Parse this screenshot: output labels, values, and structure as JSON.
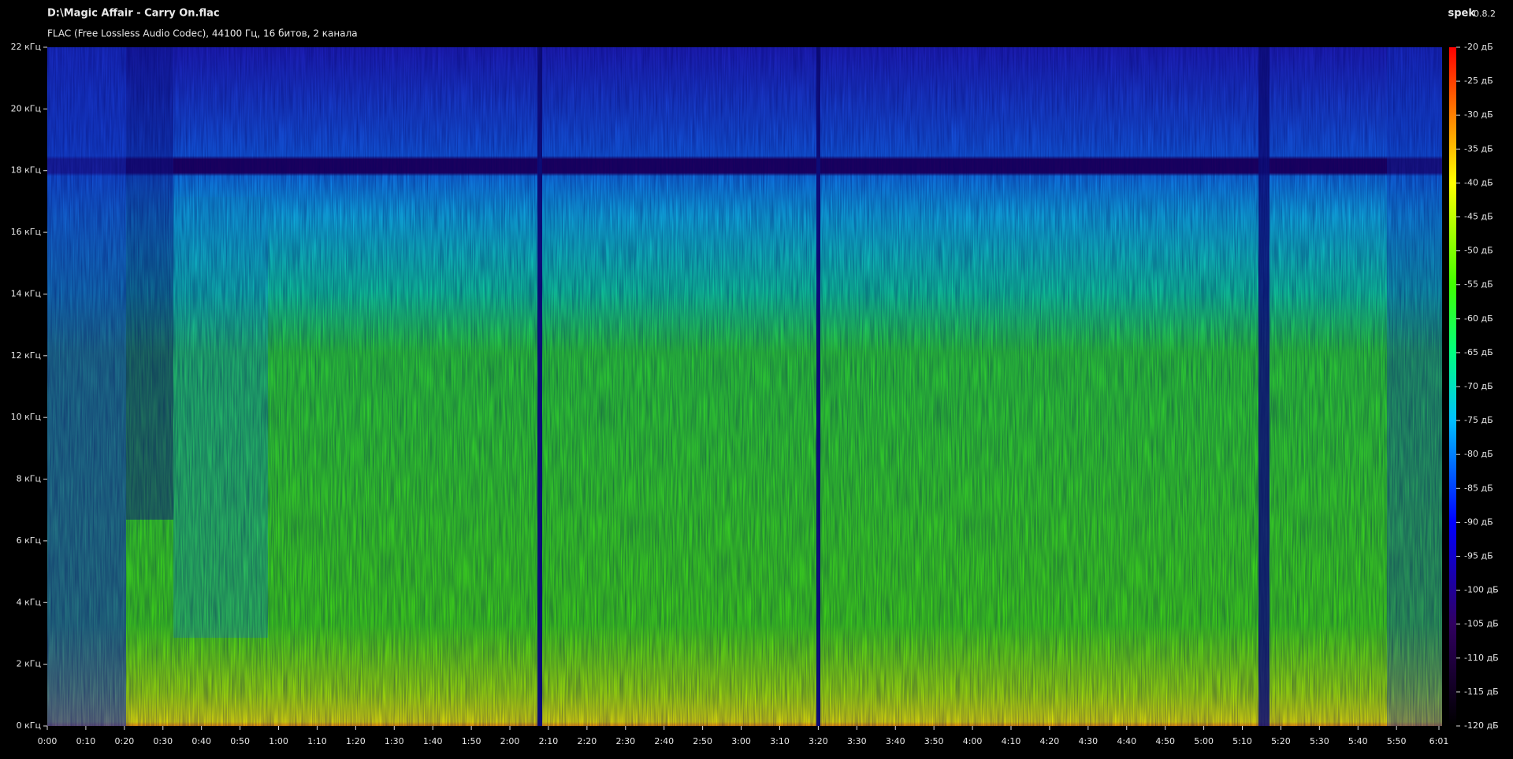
{
  "header": {
    "app": "spek",
    "version": "0.8.2"
  },
  "chart_data": {
    "type": "spectrogram",
    "title": "D:\\Magic Affair - Carry On.flac",
    "subtitle": "FLAC (Free Lossless Audio Codec), 44100 Гц, 16 битов, 2 канала",
    "xlim": [
      0,
      361
    ],
    "ylim": [
      0,
      22
    ],
    "xticks": [
      {
        "value": 0,
        "label": "0:00"
      },
      {
        "value": 10,
        "label": "0:10"
      },
      {
        "value": 20,
        "label": "0:20"
      },
      {
        "value": 30,
        "label": "0:30"
      },
      {
        "value": 40,
        "label": "0:40"
      },
      {
        "value": 50,
        "label": "0:50"
      },
      {
        "value": 60,
        "label": "1:00"
      },
      {
        "value": 70,
        "label": "1:10"
      },
      {
        "value": 80,
        "label": "1:20"
      },
      {
        "value": 90,
        "label": "1:30"
      },
      {
        "value": 100,
        "label": "1:40"
      },
      {
        "value": 110,
        "label": "1:50"
      },
      {
        "value": 120,
        "label": "2:00"
      },
      {
        "value": 130,
        "label": "2:10"
      },
      {
        "value": 140,
        "label": "2:20"
      },
      {
        "value": 150,
        "label": "2:30"
      },
      {
        "value": 160,
        "label": "2:40"
      },
      {
        "value": 170,
        "label": "2:50"
      },
      {
        "value": 180,
        "label": "3:00"
      },
      {
        "value": 190,
        "label": "3:10"
      },
      {
        "value": 200,
        "label": "3:20"
      },
      {
        "value": 210,
        "label": "3:30"
      },
      {
        "value": 220,
        "label": "3:40"
      },
      {
        "value": 230,
        "label": "3:50"
      },
      {
        "value": 240,
        "label": "4:00"
      },
      {
        "value": 250,
        "label": "4:10"
      },
      {
        "value": 260,
        "label": "4:20"
      },
      {
        "value": 270,
        "label": "4:30"
      },
      {
        "value": 280,
        "label": "4:40"
      },
      {
        "value": 290,
        "label": "4:50"
      },
      {
        "value": 300,
        "label": "5:00"
      },
      {
        "value": 310,
        "label": "5:10"
      },
      {
        "value": 320,
        "label": "5:20"
      },
      {
        "value": 330,
        "label": "5:30"
      },
      {
        "value": 340,
        "label": "5:40"
      },
      {
        "value": 350,
        "label": "5:50"
      },
      {
        "value": 361,
        "label": "6:01"
      }
    ],
    "yticks": [
      {
        "value": 0,
        "label": "0 кГц"
      },
      {
        "value": 2,
        "label": "2 кГц"
      },
      {
        "value": 4,
        "label": "4 кГц"
      },
      {
        "value": 6,
        "label": "6 кГц"
      },
      {
        "value": 8,
        "label": "8 кГц"
      },
      {
        "value": 10,
        "label": "10 кГц"
      },
      {
        "value": 12,
        "label": "12 кГц"
      },
      {
        "value": 14,
        "label": "14 кГц"
      },
      {
        "value": 16,
        "label": "16 кГц"
      },
      {
        "value": 18,
        "label": "18 кГц"
      },
      {
        "value": 20,
        "label": "20 кГц"
      },
      {
        "value": 22,
        "label": "22 кГц"
      }
    ],
    "colorbar": {
      "zlim": [
        -120,
        -20
      ],
      "ticks": [
        {
          "value": -20,
          "label": "-20 дБ"
        },
        {
          "value": -25,
          "label": "-25 дБ"
        },
        {
          "value": -30,
          "label": "-30 дБ"
        },
        {
          "value": -35,
          "label": "-35 дБ"
        },
        {
          "value": -40,
          "label": "-40 дБ"
        },
        {
          "value": -45,
          "label": "-45 дБ"
        },
        {
          "value": -50,
          "label": "-50 дБ"
        },
        {
          "value": -55,
          "label": "-55 дБ"
        },
        {
          "value": -60,
          "label": "-60 дБ"
        },
        {
          "value": -65,
          "label": "-65 дБ"
        },
        {
          "value": -70,
          "label": "-70 дБ"
        },
        {
          "value": -75,
          "label": "-75 дБ"
        },
        {
          "value": -80,
          "label": "-80 дБ"
        },
        {
          "value": -85,
          "label": "-85 дБ"
        },
        {
          "value": -90,
          "label": "-90 дБ"
        },
        {
          "value": -95,
          "label": "-95 дБ"
        },
        {
          "value": -100,
          "label": "-100 дБ"
        },
        {
          "value": -105,
          "label": "-105 дБ"
        },
        {
          "value": -110,
          "label": "-110 дБ"
        },
        {
          "value": -115,
          "label": "-115 дБ"
        },
        {
          "value": -120,
          "label": "-120 дБ"
        }
      ]
    }
  }
}
